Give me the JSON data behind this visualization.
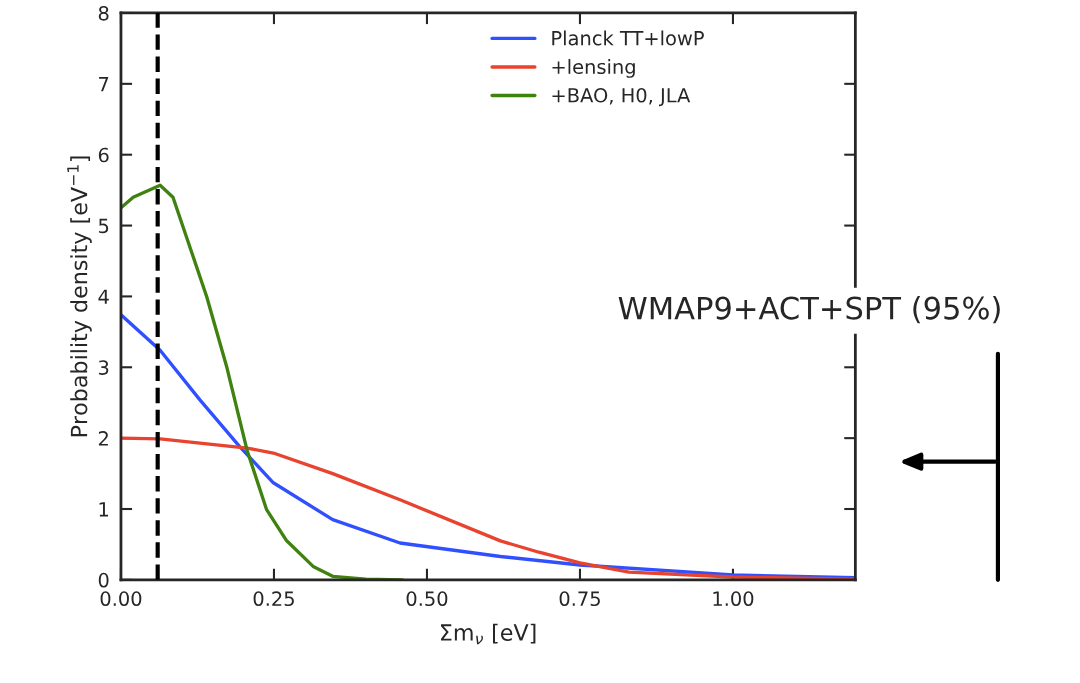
{
  "chart_data": {
    "type": "line",
    "xlabel": "Σm$_{ν}$ [eV]",
    "ylabel": "Probability density [eV$^{−1}$]",
    "xlim": [
      0,
      1.2
    ],
    "ylim": [
      0,
      8
    ],
    "xticks": [
      {
        "value": 0,
        "label": "0.00"
      },
      0.25,
      {
        "value": 0.5,
        "label": "0.50"
      },
      0.75,
      {
        "value": 1,
        "label": "1.00"
      }
    ],
    "yticks": [
      0,
      1,
      2,
      3,
      4,
      5,
      6,
      7,
      8
    ],
    "series": [
      {
        "name": "Planck TT+lowP",
        "color": "#3050ff",
        "x": [
          0,
          0.064,
          0.129,
          0.194,
          0.249,
          0.346,
          0.456,
          0.62,
          0.75,
          1.0,
          1.2
        ],
        "values": [
          3.74,
          3.24,
          2.54,
          1.88,
          1.37,
          0.85,
          0.52,
          0.33,
          0.21,
          0.07,
          0.03
        ]
      },
      {
        "name": "+lensing",
        "color": "#e8432e",
        "x": [
          0,
          0.064,
          0.129,
          0.206,
          0.249,
          0.346,
          0.456,
          0.62,
          0.683,
          0.75,
          0.83,
          1.0,
          1.2
        ],
        "values": [
          2.0,
          1.99,
          1.93,
          1.86,
          1.79,
          1.5,
          1.13,
          0.55,
          0.39,
          0.24,
          0.11,
          0.04,
          0.01
        ]
      },
      {
        "name": "+BAO, H0, JLA",
        "color": "#3f820f",
        "x": [
          0,
          0.02,
          0.064,
          0.085,
          0.14,
          0.173,
          0.206,
          0.238,
          0.27,
          0.314,
          0.346,
          0.4,
          0.46
        ],
        "values": [
          5.25,
          5.4,
          5.57,
          5.4,
          4.0,
          3.0,
          1.83,
          0.99,
          0.56,
          0.19,
          0.05,
          0.01,
          0
        ]
      }
    ],
    "ref_lines": [
      {
        "axis": "x",
        "value": 0.06,
        "color": "#000000",
        "line_style": "dashed"
      }
    ],
    "annotations": [
      "WMAP9+ACT+SPT (95%)"
    ],
    "legend": "top",
    "grid": false,
    "marker": "none",
    "line_style": "solid"
  }
}
